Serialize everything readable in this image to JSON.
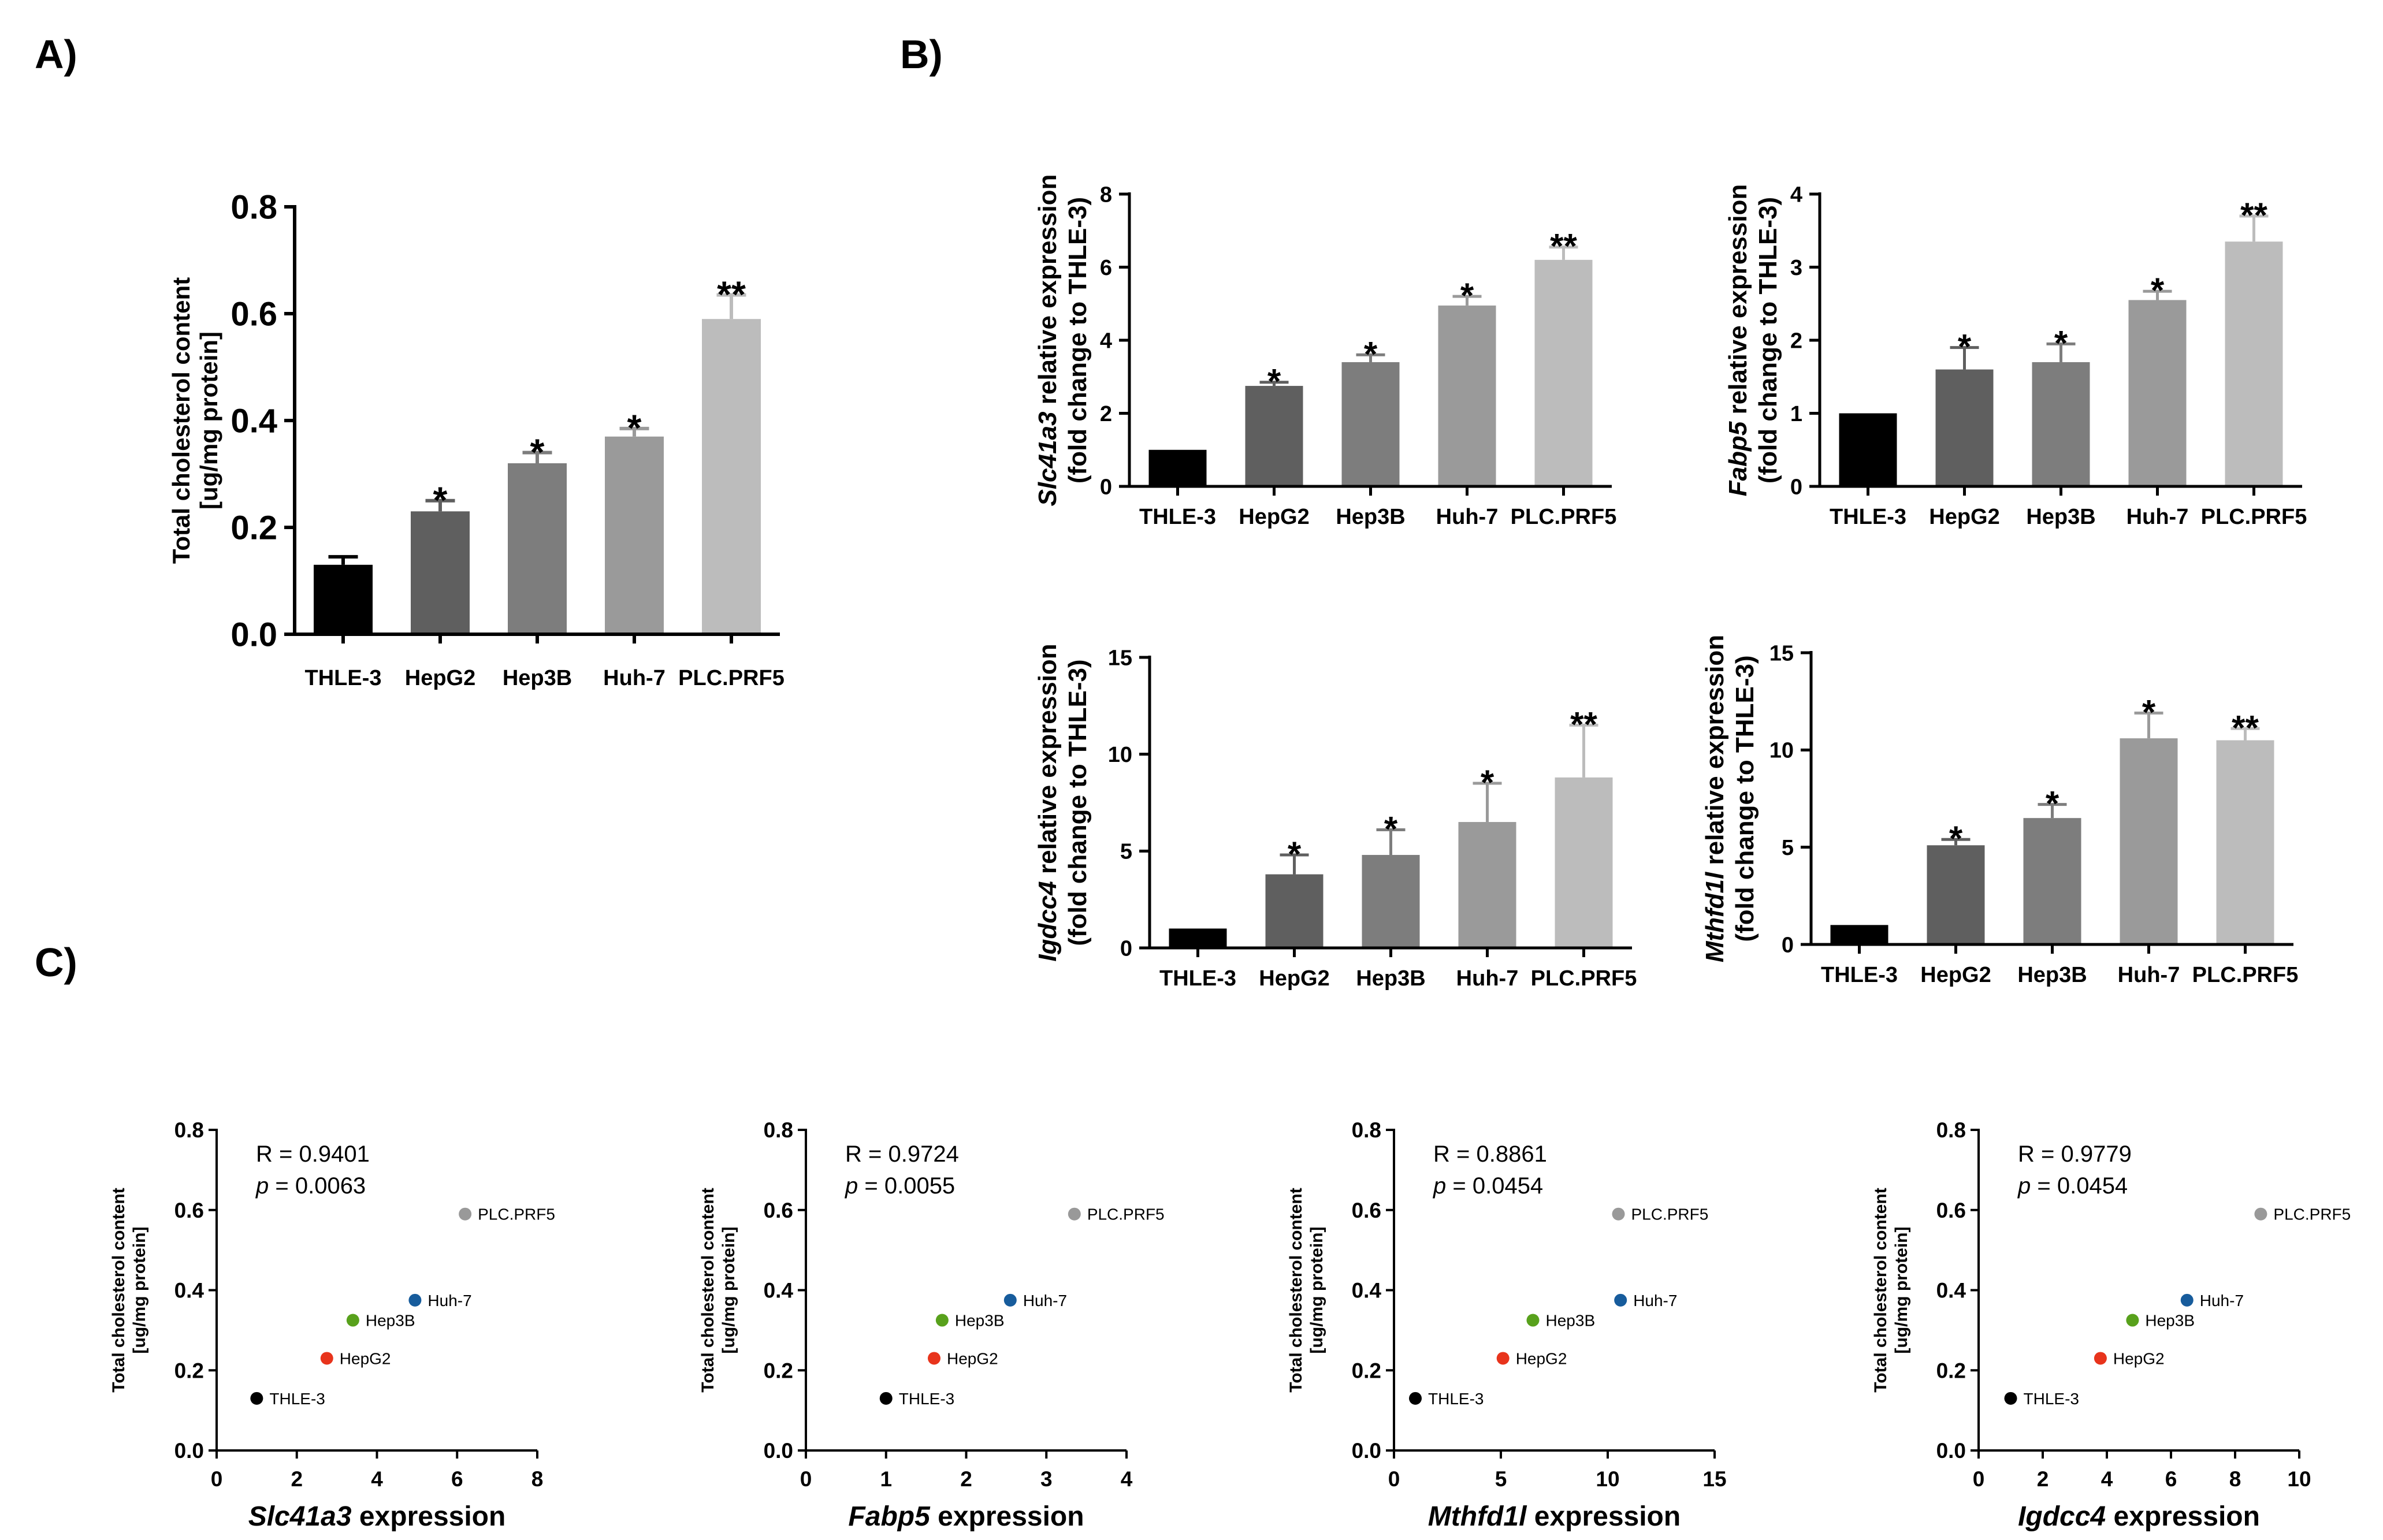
{
  "panels": {
    "a": "A)",
    "b": "B)",
    "c": "C)"
  },
  "colors": {
    "ink": "#000000",
    "bar_thle3": "#000000",
    "bar_hepg2": "#5f5f5f",
    "bar_hep3b": "#7d7d7d",
    "bar_huh7": "#9a9a9a",
    "bar_plc": "#bcbcbc",
    "dot_thle3": "#000000",
    "dot_hepg2": "#e8341c",
    "dot_hep3b": "#58a11c",
    "dot_huh7": "#175c9c",
    "dot_plc": "#999999"
  },
  "chart_data": [
    {
      "id": "A",
      "type": "bar",
      "panel": "A)",
      "title": "",
      "xlabel": "",
      "ylabel": [
        "Total cholesterol content",
        "[ug/mg protein]"
      ],
      "categories": [
        "THLE-3",
        "HepG2",
        "Hep3B",
        "Huh-7",
        "PLC.PRF5"
      ],
      "values": [
        0.13,
        0.23,
        0.32,
        0.37,
        0.59
      ],
      "errors": [
        0.015,
        0.02,
        0.02,
        0.015,
        0.045
      ],
      "significance": [
        "",
        "*",
        "*",
        "*",
        "**"
      ],
      "ylim": [
        0,
        0.8
      ],
      "yticks": [
        "0.0",
        "0.2",
        "0.4",
        "0.6",
        "0.8"
      ],
      "grid": false
    },
    {
      "id": "B1",
      "type": "bar",
      "panel": "B)",
      "title": "",
      "xlabel": "",
      "ylabel_gene": "Slc41a3",
      "ylabel_rest": " relative expression",
      "ylabel_line2": "(fold change to THLE-3)",
      "categories": [
        "THLE-3",
        "HepG2",
        "Hep3B",
        "Huh-7",
        "PLC.PRF5"
      ],
      "values": [
        1.0,
        2.75,
        3.4,
        4.95,
        6.2
      ],
      "errors": [
        0,
        0.1,
        0.2,
        0.25,
        0.35
      ],
      "significance": [
        "",
        "*",
        "*",
        "*",
        "**"
      ],
      "ylim": [
        0,
        8
      ],
      "yticks": [
        "0",
        "2",
        "4",
        "6",
        "8"
      ],
      "grid": false
    },
    {
      "id": "B2",
      "type": "bar",
      "title": "",
      "xlabel": "",
      "ylabel_gene": "Fabp5",
      "ylabel_rest": " relative expression",
      "ylabel_line2": "(fold change to THLE-3)",
      "categories": [
        "THLE-3",
        "HepG2",
        "Hep3B",
        "Huh-7",
        "PLC.PRF5"
      ],
      "values": [
        1.0,
        1.6,
        1.7,
        2.55,
        3.35
      ],
      "errors": [
        0,
        0.3,
        0.25,
        0.12,
        0.35
      ],
      "significance": [
        "",
        "*",
        "*",
        "*",
        "**"
      ],
      "ylim": [
        0,
        4
      ],
      "yticks": [
        "0",
        "1",
        "2",
        "3",
        "4"
      ],
      "grid": false
    },
    {
      "id": "B3",
      "type": "bar",
      "title": "",
      "xlabel": "",
      "ylabel_gene": "Igdcc4",
      "ylabel_rest": " relative expression",
      "ylabel_line2": "(fold change to THLE-3)",
      "categories": [
        "THLE-3",
        "HepG2",
        "Hep3B",
        "Huh-7",
        "PLC.PRF5"
      ],
      "values": [
        1.0,
        3.8,
        4.8,
        6.5,
        8.8
      ],
      "errors": [
        0,
        1.0,
        1.3,
        2.0,
        2.7
      ],
      "significance": [
        "",
        "*",
        "*",
        "*",
        "**"
      ],
      "ylim": [
        0,
        15
      ],
      "yticks": [
        "0",
        "5",
        "10",
        "15"
      ],
      "grid": false
    },
    {
      "id": "B4",
      "type": "bar",
      "title": "",
      "xlabel": "",
      "ylabel_gene": "Mthfd1l",
      "ylabel_rest": " relative expression",
      "ylabel_line2": "(fold change to THLE-3)",
      "categories": [
        "THLE-3",
        "HepG2",
        "Hep3B",
        "Huh-7",
        "PLC.PRF5"
      ],
      "values": [
        1.0,
        5.1,
        6.5,
        10.6,
        10.5
      ],
      "errors": [
        0,
        0.3,
        0.7,
        1.3,
        0.6
      ],
      "significance": [
        "",
        "*",
        "*",
        "*",
        "**"
      ],
      "ylim": [
        0,
        15
      ],
      "yticks": [
        "0",
        "5",
        "10",
        "15"
      ],
      "grid": false
    },
    {
      "id": "C1",
      "type": "scatter",
      "panel": "C)",
      "title": "",
      "ylabel": [
        "Total cholesterol content",
        "[ug/mg protein]"
      ],
      "xlabel_gene": "Slc41a3",
      "xlabel_rest": " expression",
      "r_text": "R = 0.9401",
      "p_symbol": "p",
      "p_rest": " = 0.0063",
      "labels": [
        "THLE-3",
        "HepG2",
        "Hep3B",
        "Huh-7",
        "PLC.PRF5"
      ],
      "x": [
        1.0,
        2.75,
        3.4,
        4.95,
        6.2
      ],
      "y": [
        0.13,
        0.23,
        0.325,
        0.375,
        0.59
      ],
      "xlim": [
        0,
        8
      ],
      "ylim": [
        0,
        0.8
      ],
      "xticks": [
        "0",
        "2",
        "4",
        "6",
        "8"
      ],
      "yticks": [
        "0.0",
        "0.2",
        "0.4",
        "0.6",
        "0.8"
      ],
      "grid": false
    },
    {
      "id": "C2",
      "type": "scatter",
      "title": "",
      "ylabel": [
        "Total cholesterol content",
        "[ug/mg protein]"
      ],
      "xlabel_gene": "Fabp5",
      "xlabel_rest": " expression",
      "r_text": "R = 0.9724",
      "p_symbol": "p",
      "p_rest": " = 0.0055",
      "labels": [
        "THLE-3",
        "HepG2",
        "Hep3B",
        "Huh-7",
        "PLC.PRF5"
      ],
      "x": [
        1.0,
        1.6,
        1.7,
        2.55,
        3.35
      ],
      "y": [
        0.13,
        0.23,
        0.325,
        0.375,
        0.59
      ],
      "xlim": [
        0,
        4
      ],
      "ylim": [
        0,
        0.8
      ],
      "xticks": [
        "0",
        "1",
        "2",
        "3",
        "4"
      ],
      "yticks": [
        "0.0",
        "0.2",
        "0.4",
        "0.6",
        "0.8"
      ],
      "grid": false
    },
    {
      "id": "C3",
      "type": "scatter",
      "title": "",
      "ylabel": [
        "Total cholesterol content",
        "[ug/mg protein]"
      ],
      "xlabel_gene": "Mthfd1l",
      "xlabel_rest": " expression",
      "r_text": "R = 0.8861",
      "p_symbol": "p",
      "p_rest": " = 0.0454",
      "labels": [
        "THLE-3",
        "HepG2",
        "Hep3B",
        "Huh-7",
        "PLC.PRF5"
      ],
      "x": [
        1.0,
        5.1,
        6.5,
        10.6,
        10.5
      ],
      "y": [
        0.13,
        0.23,
        0.325,
        0.375,
        0.59
      ],
      "xlim": [
        0,
        15
      ],
      "ylim": [
        0,
        0.8
      ],
      "xticks": [
        "0",
        "5",
        "10",
        "15"
      ],
      "yticks": [
        "0.0",
        "0.2",
        "0.4",
        "0.6",
        "0.8"
      ],
      "grid": false
    },
    {
      "id": "C4",
      "type": "scatter",
      "title": "",
      "ylabel": [
        "Total cholesterol content",
        "[ug/mg protein]"
      ],
      "xlabel_gene": "Igdcc4",
      "xlabel_rest": " expression",
      "r_text": "R = 0.9779",
      "p_symbol": "p",
      "p_rest": " = 0.0454",
      "labels": [
        "THLE-3",
        "HepG2",
        "Hep3B",
        "Huh-7",
        "PLC.PRF5"
      ],
      "x": [
        1.0,
        3.8,
        4.8,
        6.5,
        8.8
      ],
      "y": [
        0.13,
        0.23,
        0.325,
        0.375,
        0.59
      ],
      "xlim": [
        0,
        10
      ],
      "ylim": [
        0,
        0.8
      ],
      "xticks": [
        "0",
        "2",
        "4",
        "6",
        "8",
        "10"
      ],
      "yticks": [
        "0.0",
        "0.2",
        "0.4",
        "0.6",
        "0.8"
      ],
      "grid": false
    }
  ]
}
